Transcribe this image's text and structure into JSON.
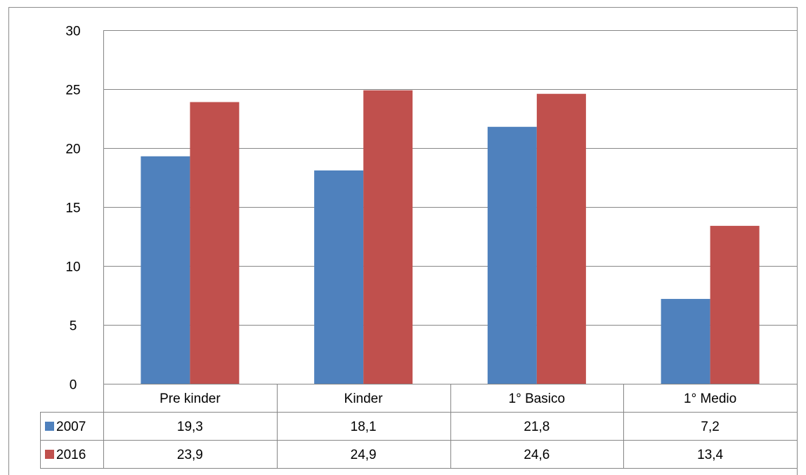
{
  "chart_data": {
    "type": "bar",
    "categories": [
      "Pre kinder",
      "Kinder",
      "1° Basico",
      "1° Medio"
    ],
    "series": [
      {
        "name": "2007",
        "values": [
          19.3,
          18.1,
          21.8,
          7.2
        ],
        "labels": [
          "19,3",
          "18,1",
          "21,8",
          "7,2"
        ],
        "color": "#4f81bd"
      },
      {
        "name": "2016",
        "values": [
          23.9,
          24.9,
          24.6,
          13.4
        ],
        "labels": [
          "23,9",
          "24,9",
          "24,6",
          "13,4"
        ],
        "color": "#c0504d"
      }
    ],
    "ylim": [
      0,
      30
    ],
    "yticks": [
      0,
      5,
      10,
      15,
      20,
      25,
      30
    ],
    "grid": true,
    "legend": "data-table",
    "title": "",
    "xlabel": "",
    "ylabel": ""
  }
}
